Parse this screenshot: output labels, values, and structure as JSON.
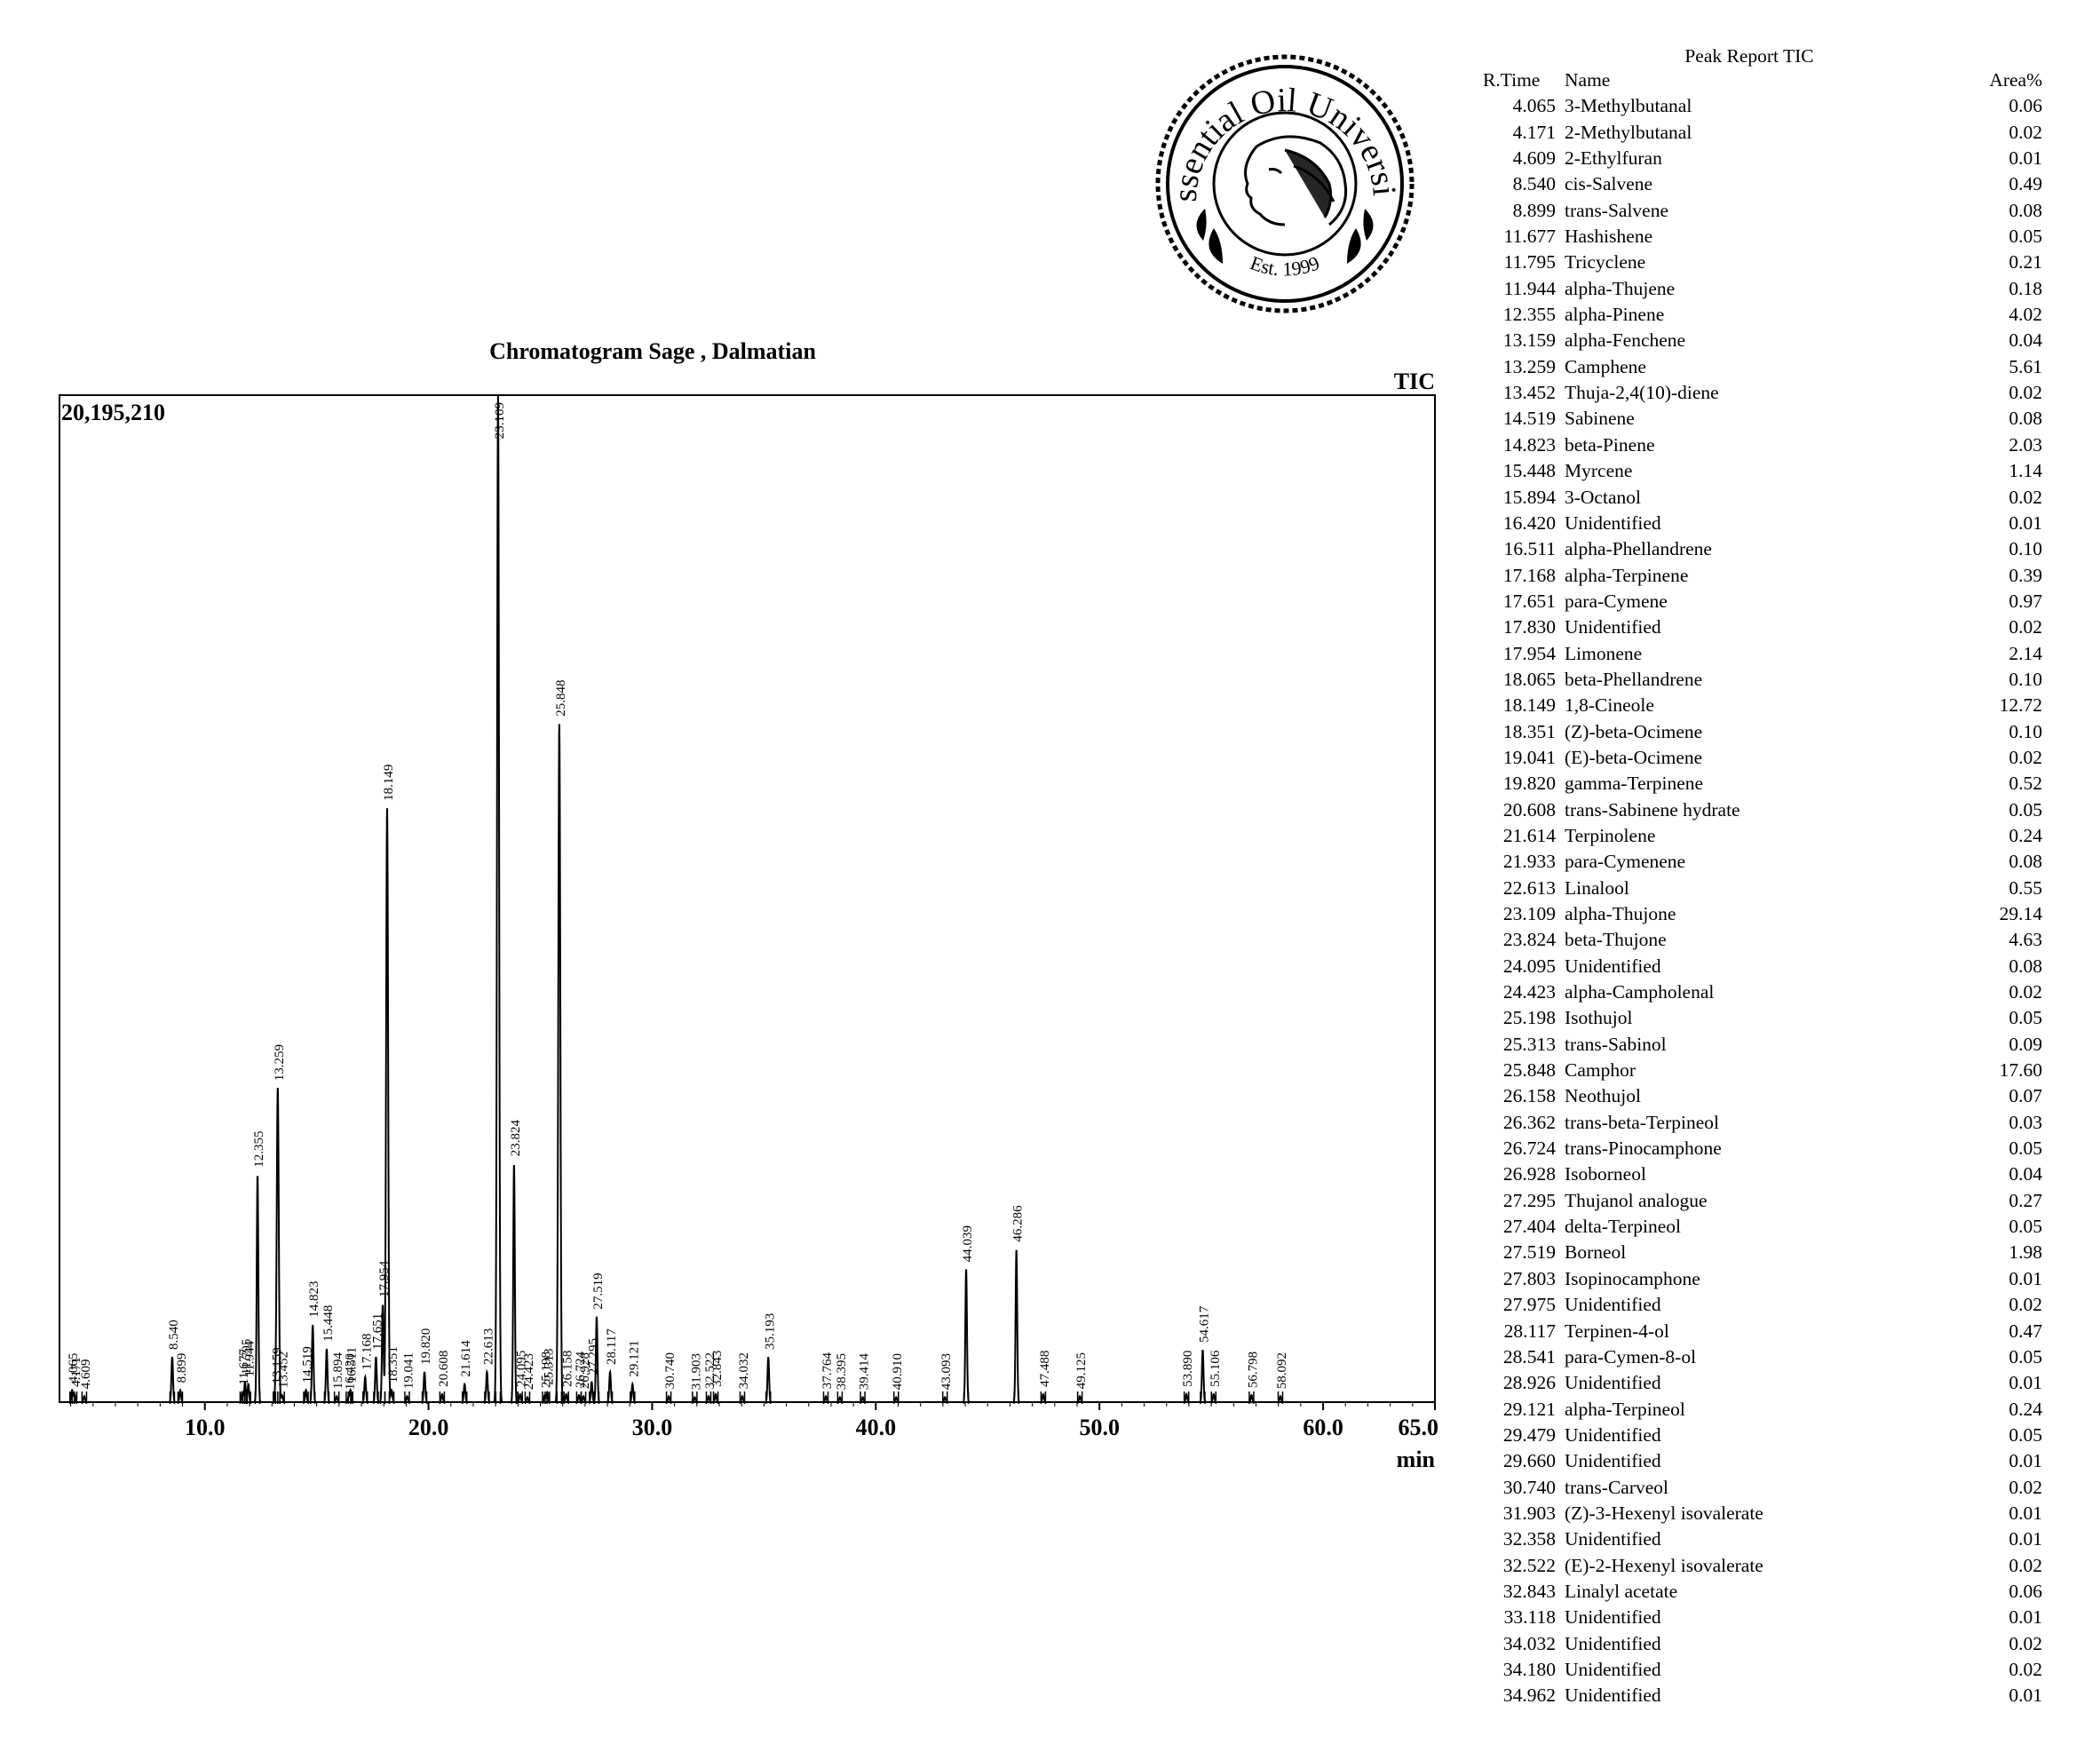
{
  "logo": {
    "top_text": "Essential Oil University",
    "bottom_text": "Est. 1999"
  },
  "chart_data": {
    "type": "line",
    "title": "Chromatogram Sage , Dalmatian",
    "signal_label": "TIC",
    "ymax_label": "20,195,210",
    "ylim": [
      0,
      20195210
    ],
    "xlim": [
      3.5,
      65.0
    ],
    "xlabel": "min",
    "xticks": [
      "10.0",
      "20.0",
      "30.0",
      "40.0",
      "50.0",
      "60.0",
      "65.0"
    ],
    "xtick_values": [
      10,
      20,
      30,
      40,
      50,
      60,
      65
    ],
    "peak_labels": [
      {
        "rt": "4.065",
        "height": 0.012
      },
      {
        "rt": "4.171",
        "height": 0.008
      },
      {
        "rt": "4.609",
        "height": 0.006
      },
      {
        "rt": "8.540",
        "height": 0.045
      },
      {
        "rt": "8.899",
        "height": 0.012
      },
      {
        "rt": "11.677",
        "height": 0.01
      },
      {
        "rt": "11.795",
        "height": 0.02
      },
      {
        "rt": "11.944",
        "height": 0.018
      },
      {
        "rt": "12.355",
        "height": 0.226
      },
      {
        "rt": "13.159",
        "height": 0.011
      },
      {
        "rt": "13.259",
        "height": 0.312
      },
      {
        "rt": "13.452",
        "height": 0.007
      },
      {
        "rt": "14.519",
        "height": 0.012
      },
      {
        "rt": "14.823",
        "height": 0.077
      },
      {
        "rt": "15.448",
        "height": 0.053
      },
      {
        "rt": "15.894",
        "height": 0.006
      },
      {
        "rt": "16.420",
        "height": 0.005
      },
      {
        "rt": "16.511",
        "height": 0.012
      },
      {
        "rt": "17.168",
        "height": 0.025
      },
      {
        "rt": "17.651",
        "height": 0.045
      },
      {
        "rt": "17.954",
        "height": 0.097
      },
      {
        "rt": "18.149",
        "height": 0.59
      },
      {
        "rt": "18.351",
        "height": 0.012
      },
      {
        "rt": "19.041",
        "height": 0.006
      },
      {
        "rt": "19.820",
        "height": 0.03
      },
      {
        "rt": "20.608",
        "height": 0.008
      },
      {
        "rt": "21.614",
        "height": 0.018
      },
      {
        "rt": "22.613",
        "height": 0.03
      },
      {
        "rt": "23.109",
        "height": 1.0
      },
      {
        "rt": "23.824",
        "height": 0.237
      },
      {
        "rt": "24.095",
        "height": 0.008
      },
      {
        "rt": "24.423",
        "height": 0.005
      },
      {
        "rt": "25.198",
        "height": 0.007
      },
      {
        "rt": "25.313",
        "height": 0.01
      },
      {
        "rt": "25.848",
        "height": 0.674
      },
      {
        "rt": "26.158",
        "height": 0.008
      },
      {
        "rt": "26.724",
        "height": 0.007
      },
      {
        "rt": "26.928",
        "height": 0.006
      },
      {
        "rt": "27.295",
        "height": 0.02
      },
      {
        "rt": "27.519",
        "height": 0.085
      },
      {
        "rt": "28.117",
        "height": 0.03
      },
      {
        "rt": "29.121",
        "height": 0.018
      },
      {
        "rt": "30.740",
        "height": 0.006
      },
      {
        "rt": "31.903",
        "height": 0.005
      },
      {
        "rt": "32.522",
        "height": 0.006
      },
      {
        "rt": "32.843",
        "height": 0.008
      },
      {
        "rt": "34.032",
        "height": 0.006
      },
      {
        "rt": "35.193",
        "height": 0.045
      },
      {
        "rt": "37.764",
        "height": 0.006
      },
      {
        "rt": "38.395",
        "height": 0.005
      },
      {
        "rt": "39.414",
        "height": 0.005
      },
      {
        "rt": "40.910",
        "height": 0.005
      },
      {
        "rt": "43.093",
        "height": 0.005
      },
      {
        "rt": "44.039",
        "height": 0.132
      },
      {
        "rt": "46.286",
        "height": 0.152
      },
      {
        "rt": "47.488",
        "height": 0.008
      },
      {
        "rt": "49.125",
        "height": 0.006
      },
      {
        "rt": "53.890",
        "height": 0.008
      },
      {
        "rt": "54.617",
        "height": 0.052
      },
      {
        "rt": "55.106",
        "height": 0.008
      },
      {
        "rt": "56.798",
        "height": 0.007
      },
      {
        "rt": "58.092",
        "height": 0.006
      }
    ]
  },
  "peak_report": {
    "title": "Peak Report TIC",
    "headers": {
      "rt": "R.Time",
      "name": "Name",
      "area": "Area%"
    },
    "rows": [
      {
        "rt": "4.065",
        "name": "3-Methylbutanal",
        "area": "0.06"
      },
      {
        "rt": "4.171",
        "name": "2-Methylbutanal",
        "area": "0.02"
      },
      {
        "rt": "4.609",
        "name": "2-Ethylfuran",
        "area": "0.01"
      },
      {
        "rt": "8.540",
        "name": "cis-Salvene",
        "area": "0.49"
      },
      {
        "rt": "8.899",
        "name": "trans-Salvene",
        "area": "0.08"
      },
      {
        "rt": "11.677",
        "name": "Hashishene",
        "area": "0.05"
      },
      {
        "rt": "11.795",
        "name": "Tricyclene",
        "area": "0.21"
      },
      {
        "rt": "11.944",
        "name": "alpha-Thujene",
        "area": "0.18"
      },
      {
        "rt": "12.355",
        "name": "alpha-Pinene",
        "area": "4.02"
      },
      {
        "rt": "13.159",
        "name": "alpha-Fenchene",
        "area": "0.04"
      },
      {
        "rt": "13.259",
        "name": "Camphene",
        "area": "5.61"
      },
      {
        "rt": "13.452",
        "name": "Thuja-2,4(10)-diene",
        "area": "0.02"
      },
      {
        "rt": "14.519",
        "name": "Sabinene",
        "area": "0.08"
      },
      {
        "rt": "14.823",
        "name": "beta-Pinene",
        "area": "2.03"
      },
      {
        "rt": "15.448",
        "name": "Myrcene",
        "area": "1.14"
      },
      {
        "rt": "15.894",
        "name": "3-Octanol",
        "area": "0.02"
      },
      {
        "rt": "16.420",
        "name": "Unidentified",
        "area": "0.01"
      },
      {
        "rt": "16.511",
        "name": "alpha-Phellandrene",
        "area": "0.10"
      },
      {
        "rt": "17.168",
        "name": "alpha-Terpinene",
        "area": "0.39"
      },
      {
        "rt": "17.651",
        "name": "para-Cymene",
        "area": "0.97"
      },
      {
        "rt": "17.830",
        "name": "Unidentified",
        "area": "0.02"
      },
      {
        "rt": "17.954",
        "name": "Limonene",
        "area": "2.14"
      },
      {
        "rt": "18.065",
        "name": "beta-Phellandrene",
        "area": "0.10"
      },
      {
        "rt": "18.149",
        "name": "1,8-Cineole",
        "area": "12.72"
      },
      {
        "rt": "18.351",
        "name": "(Z)-beta-Ocimene",
        "area": "0.10"
      },
      {
        "rt": "19.041",
        "name": "(E)-beta-Ocimene",
        "area": "0.02"
      },
      {
        "rt": "19.820",
        "name": "gamma-Terpinene",
        "area": "0.52"
      },
      {
        "rt": "20.608",
        "name": "trans-Sabinene hydrate",
        "area": "0.05"
      },
      {
        "rt": "21.614",
        "name": "Terpinolene",
        "area": "0.24"
      },
      {
        "rt": "21.933",
        "name": "para-Cymenene",
        "area": "0.08"
      },
      {
        "rt": "22.613",
        "name": "Linalool",
        "area": "0.55"
      },
      {
        "rt": "23.109",
        "name": "alpha-Thujone",
        "area": "29.14"
      },
      {
        "rt": "23.824",
        "name": "beta-Thujone",
        "area": "4.63"
      },
      {
        "rt": "24.095",
        "name": "Unidentified",
        "area": "0.08"
      },
      {
        "rt": "24.423",
        "name": "alpha-Campholenal",
        "area": "0.02"
      },
      {
        "rt": "25.198",
        "name": "Isothujol",
        "area": "0.05"
      },
      {
        "rt": "25.313",
        "name": "trans-Sabinol",
        "area": "0.09"
      },
      {
        "rt": "25.848",
        "name": "Camphor",
        "area": "17.60"
      },
      {
        "rt": "26.158",
        "name": "Neothujol",
        "area": "0.07"
      },
      {
        "rt": "26.362",
        "name": "trans-beta-Terpineol",
        "area": "0.03"
      },
      {
        "rt": "26.724",
        "name": "trans-Pinocamphone",
        "area": "0.05"
      },
      {
        "rt": "26.928",
        "name": "Isoborneol",
        "area": "0.04"
      },
      {
        "rt": "27.295",
        "name": "Thujanol analogue",
        "area": "0.27"
      },
      {
        "rt": "27.404",
        "name": "delta-Terpineol",
        "area": "0.05"
      },
      {
        "rt": "27.519",
        "name": "Borneol",
        "area": "1.98"
      },
      {
        "rt": "27.803",
        "name": "Isopinocamphone",
        "area": "0.01"
      },
      {
        "rt": "27.975",
        "name": "Unidentified",
        "area": "0.02"
      },
      {
        "rt": "28.117",
        "name": "Terpinen-4-ol",
        "area": "0.47"
      },
      {
        "rt": "28.541",
        "name": "para-Cymen-8-ol",
        "area": "0.05"
      },
      {
        "rt": "28.926",
        "name": "Unidentified",
        "area": "0.01"
      },
      {
        "rt": "29.121",
        "name": "alpha-Terpineol",
        "area": "0.24"
      },
      {
        "rt": "29.479",
        "name": "Unidentified",
        "area": "0.05"
      },
      {
        "rt": "29.660",
        "name": "Unidentified",
        "area": "0.01"
      },
      {
        "rt": "30.740",
        "name": "trans-Carveol",
        "area": "0.02"
      },
      {
        "rt": "31.903",
        "name": "(Z)-3-Hexenyl isovalerate",
        "area": "0.01"
      },
      {
        "rt": "32.358",
        "name": "Unidentified",
        "area": "0.01"
      },
      {
        "rt": "32.522",
        "name": "(E)-2-Hexenyl isovalerate",
        "area": "0.02"
      },
      {
        "rt": "32.843",
        "name": "Linalyl acetate",
        "area": "0.06"
      },
      {
        "rt": "33.118",
        "name": "Unidentified",
        "area": "0.01"
      },
      {
        "rt": "34.032",
        "name": "Unidentified",
        "area": "0.02"
      },
      {
        "rt": "34.180",
        "name": "Unidentified",
        "area": "0.02"
      },
      {
        "rt": "34.962",
        "name": "Unidentified",
        "area": "0.01"
      }
    ]
  }
}
